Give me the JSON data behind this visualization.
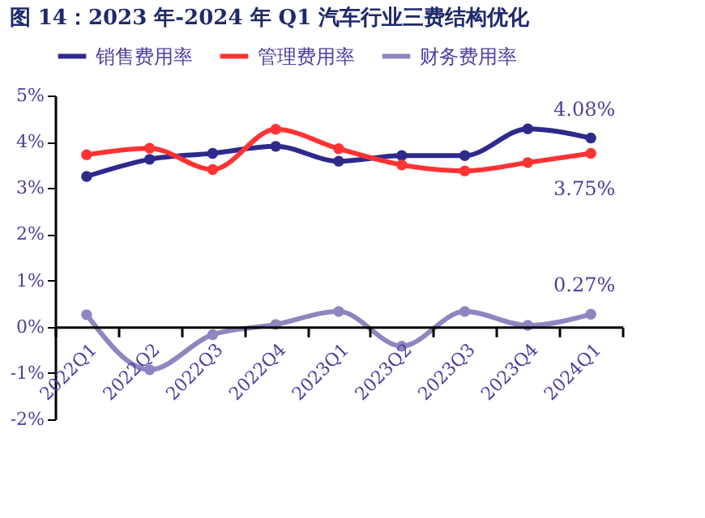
{
  "chart_data": {
    "type": "line",
    "title": "图 14：2023 年-2024 年 Q1 汽车行业三费结构优化",
    "categories": [
      "2022Q1",
      "2022Q2",
      "2022Q3",
      "2022Q4",
      "2023Q1",
      "2023Q2",
      "2023Q3",
      "2023Q4",
      "2024Q1"
    ],
    "series": [
      {
        "name": "销售费用率",
        "color": "#2e2a8c",
        "values": [
          3.25,
          3.62,
          3.75,
          3.9,
          3.58,
          3.7,
          3.7,
          4.28,
          4.08
        ]
      },
      {
        "name": "管理费用率",
        "color": "#ff3333",
        "values": [
          3.72,
          3.86,
          3.4,
          4.27,
          3.85,
          3.5,
          3.37,
          3.55,
          3.75
        ]
      },
      {
        "name": "财务费用率",
        "color": "#8e86bf",
        "values": [
          0.26,
          -0.93,
          -0.17,
          0.05,
          0.33,
          -0.42,
          0.33,
          0.03,
          0.27
        ]
      }
    ],
    "ylim": [
      -2,
      5
    ],
    "yticks": [
      {
        "value": -2,
        "label": "-2%"
      },
      {
        "value": -1,
        "label": "-1%"
      },
      {
        "value": 0,
        "label": "0%"
      },
      {
        "value": 1,
        "label": "1%"
      },
      {
        "value": 2,
        "label": "2%"
      },
      {
        "value": 3,
        "label": "3%"
      },
      {
        "value": 4,
        "label": "4%"
      },
      {
        "value": 5,
        "label": "5%"
      }
    ],
    "annotations": [
      {
        "text": "4.08%",
        "x": "2024Q1",
        "y": 4.08
      },
      {
        "text": "3.75%",
        "x": "2024Q1",
        "y": 3.75
      },
      {
        "text": "0.27%",
        "x": "2024Q1",
        "y": 0.27
      }
    ],
    "marker": "circle",
    "line_style": "solid",
    "grid": false,
    "legend": "top"
  }
}
